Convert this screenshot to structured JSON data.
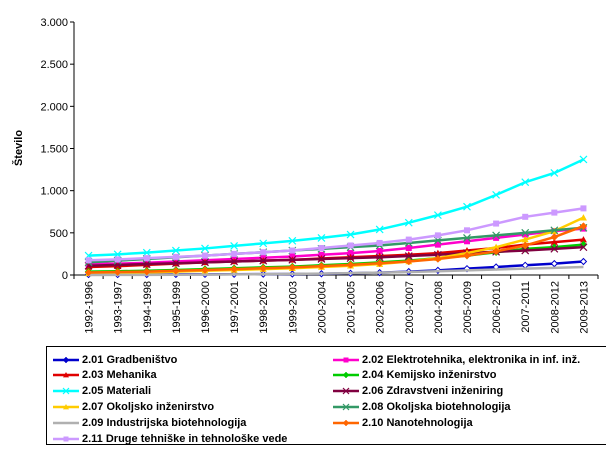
{
  "chart_data": {
    "type": "line",
    "title": "",
    "xlabel": "",
    "ylabel": "Število",
    "ylim": [
      0,
      3000
    ],
    "yticks": [
      0,
      500,
      1000,
      1500,
      2000,
      2500,
      3000
    ],
    "ytick_labels": [
      "0",
      "500",
      "1.000",
      "1.500",
      "2.000",
      "2.500",
      "3.000"
    ],
    "categories": [
      "1992-1996",
      "1993-1997",
      "1994-1998",
      "1995-1999",
      "1996-2000",
      "1997-2001",
      "1998-2002",
      "1999-2003",
      "2000-2004",
      "2001-2005",
      "2002-2006",
      "2003-2007",
      "2004-2008",
      "2005-2009",
      "2006-2010",
      "2007-2011",
      "2008-2012",
      "2009-2013"
    ],
    "grid": false,
    "legend_position": "bottom",
    "series": [
      {
        "name": "2.01 Gradbeništvo",
        "color": "#0000cc",
        "marker": "diamond",
        "values": [
          5,
          5,
          6,
          7,
          8,
          9,
          10,
          12,
          15,
          20,
          28,
          40,
          55,
          75,
          95,
          115,
          135,
          160
        ]
      },
      {
        "name": "2.02 Elektrotehnika, elektronika in inf. inž.",
        "color": "#ff00cc",
        "marker": "square",
        "values": [
          130,
          135,
          145,
          160,
          175,
          190,
          205,
          220,
          240,
          260,
          285,
          320,
          360,
          400,
          440,
          480,
          520,
          550
        ]
      },
      {
        "name": "2.03 Mehanika",
        "color": "#e00000",
        "marker": "triangle",
        "values": [
          95,
          105,
          120,
          135,
          150,
          160,
          170,
          180,
          195,
          210,
          225,
          240,
          260,
          290,
          320,
          360,
          390,
          420
        ]
      },
      {
        "name": "2.04 Kemijsko inženirstvo",
        "color": "#00cc00",
        "marker": "diamond",
        "values": [
          40,
          45,
          50,
          60,
          70,
          80,
          90,
          100,
          115,
          130,
          150,
          170,
          200,
          230,
          270,
          310,
          330,
          360
        ]
      },
      {
        "name": "2.05 Materiali",
        "color": "#00ffff",
        "marker": "x",
        "values": [
          230,
          245,
          265,
          290,
          315,
          345,
          375,
          405,
          440,
          480,
          540,
          620,
          710,
          810,
          950,
          1100,
          1210,
          1370
        ]
      },
      {
        "name": "2.06 Zdravstveni inženiring",
        "color": "#800040",
        "marker": "x",
        "values": [
          110,
          120,
          130,
          140,
          150,
          160,
          170,
          180,
          190,
          200,
          210,
          225,
          240,
          260,
          275,
          290,
          310,
          330
        ]
      },
      {
        "name": "2.07 Okoljsko inženirstvo",
        "color": "#ffcc00",
        "marker": "triangle",
        "values": [
          20,
          25,
          30,
          40,
          50,
          60,
          70,
          80,
          95,
          110,
          130,
          160,
          200,
          260,
          330,
          420,
          520,
          680
        ]
      },
      {
        "name": "2.08 Okoljska biotehnologija",
        "color": "#339966",
        "marker": "x",
        "values": [
          150,
          170,
          190,
          210,
          230,
          250,
          270,
          290,
          310,
          330,
          350,
          380,
          410,
          440,
          470,
          500,
          530,
          560
        ]
      },
      {
        "name": "2.09 Industrijska biotehnologija",
        "color": "#b0b0b0",
        "marker": "none",
        "values": [
          0,
          1,
          2,
          3,
          5,
          8,
          10,
          13,
          17,
          22,
          28,
          35,
          45,
          55,
          65,
          75,
          85,
          95
        ]
      },
      {
        "name": "2.10 Nanotehnologija",
        "color": "#ff6600",
        "marker": "diamond",
        "values": [
          30,
          35,
          40,
          50,
          60,
          70,
          80,
          90,
          105,
          120,
          140,
          160,
          190,
          230,
          280,
          350,
          450,
          580
        ]
      },
      {
        "name": "2.11 Druge tehniške in tehnološke vede",
        "color": "#cc99ff",
        "marker": "square",
        "values": [
          175,
          185,
          200,
          215,
          230,
          250,
          270,
          290,
          320,
          350,
          380,
          420,
          470,
          530,
          610,
          690,
          740,
          790
        ]
      }
    ]
  }
}
